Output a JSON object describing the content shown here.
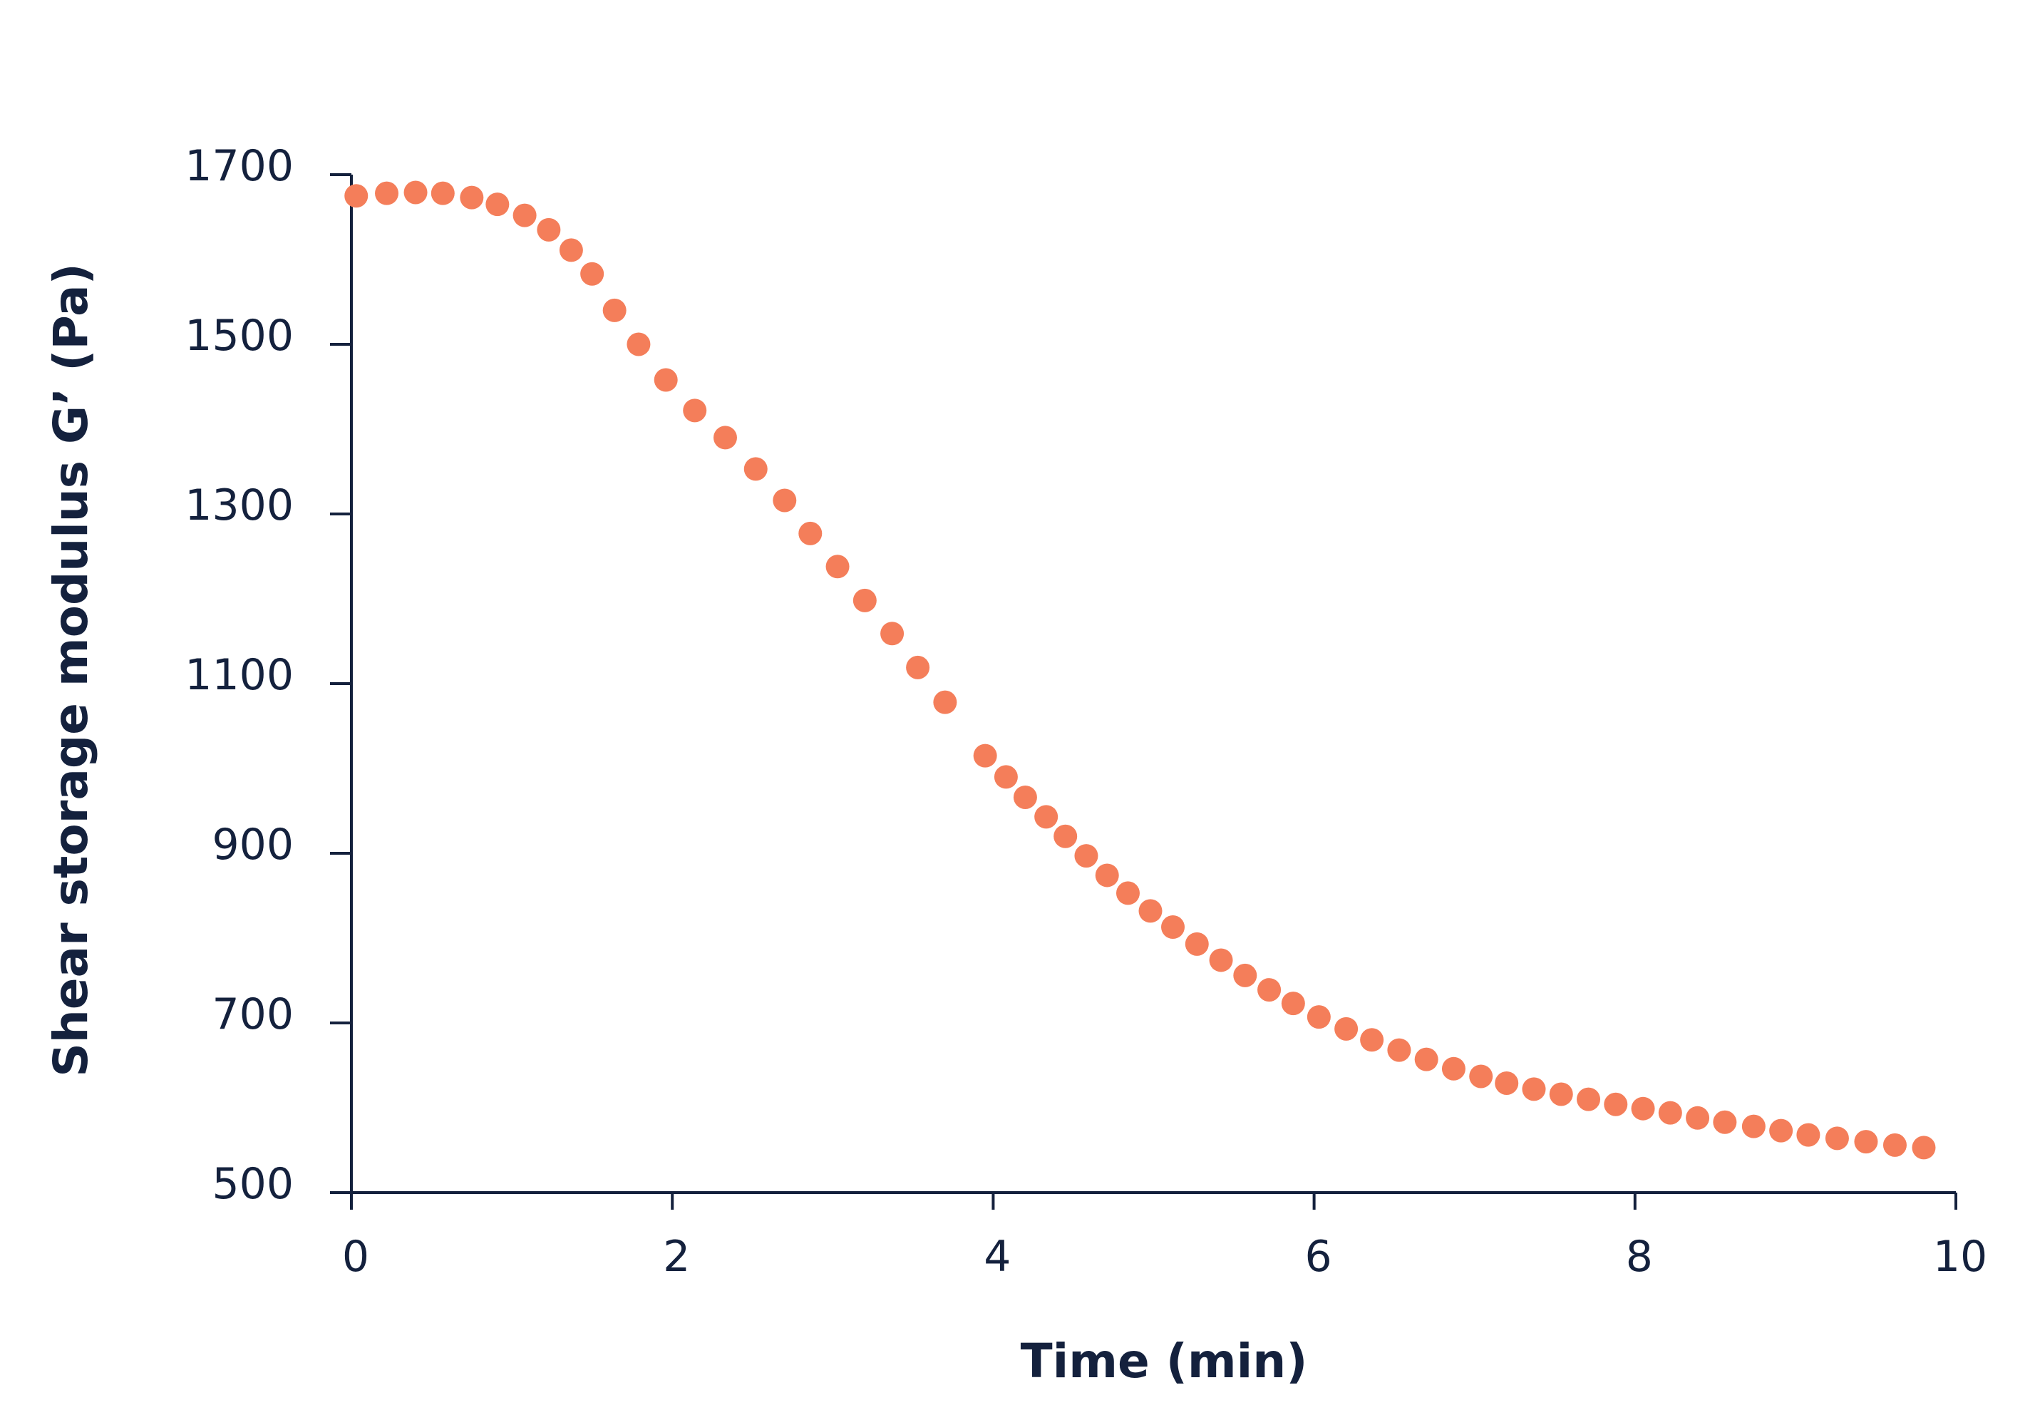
{
  "chart_data": {
    "type": "scatter",
    "title": "",
    "xlabel": "Time (min)",
    "ylabel": "Shear storage modulus G’ (Pa)",
    "xlim": [
      0,
      10
    ],
    "ylim": [
      500,
      1700
    ],
    "xticks": [
      0,
      2,
      4,
      6,
      8,
      10
    ],
    "yticks": [
      500,
      700,
      900,
      1100,
      1300,
      1500,
      1700
    ],
    "xtick_labels": [
      "0",
      "2",
      "4",
      "6",
      "8",
      "10"
    ],
    "ytick_labels": [
      "500",
      "700",
      "900",
      "1100",
      "1300",
      "1500",
      "1700"
    ],
    "grid": false,
    "marker_color": "#f47e5a",
    "axis_color": "#14213d",
    "series": [
      {
        "x": [
          0.03,
          0.22,
          0.4,
          0.57,
          0.75,
          0.91,
          1.08,
          1.23,
          1.37,
          1.5,
          1.64,
          1.79,
          1.96,
          2.14,
          2.33,
          2.52,
          2.7,
          2.86,
          3.03,
          3.2,
          3.37,
          3.53,
          3.7,
          3.95,
          4.08,
          4.2,
          4.33,
          4.45,
          4.58,
          4.71,
          4.84,
          4.98,
          5.12,
          5.27,
          5.42,
          5.57,
          5.72,
          5.87,
          6.03,
          6.2,
          6.36,
          6.53,
          6.7,
          6.87,
          7.04,
          7.2,
          7.37,
          7.54,
          7.71,
          7.88,
          8.05,
          8.22,
          8.39,
          8.56,
          8.74,
          8.91,
          9.08,
          9.26,
          9.44,
          9.62,
          9.8
        ],
        "y": [
          1675,
          1678,
          1679,
          1678,
          1673,
          1665,
          1652,
          1635,
          1611,
          1583,
          1540,
          1500,
          1458,
          1422,
          1390,
          1353,
          1316,
          1277,
          1238,
          1198,
          1159,
          1119,
          1078,
          1015,
          990,
          966,
          943,
          920,
          897,
          874,
          853,
          832,
          813,
          793,
          774,
          756,
          739,
          723,
          707,
          693,
          680,
          668,
          657,
          646,
          637,
          629,
          622,
          616,
          610,
          604,
          599,
          594,
          588,
          583,
          578,
          573,
          568,
          564,
          560,
          556,
          553
        ]
      }
    ]
  }
}
